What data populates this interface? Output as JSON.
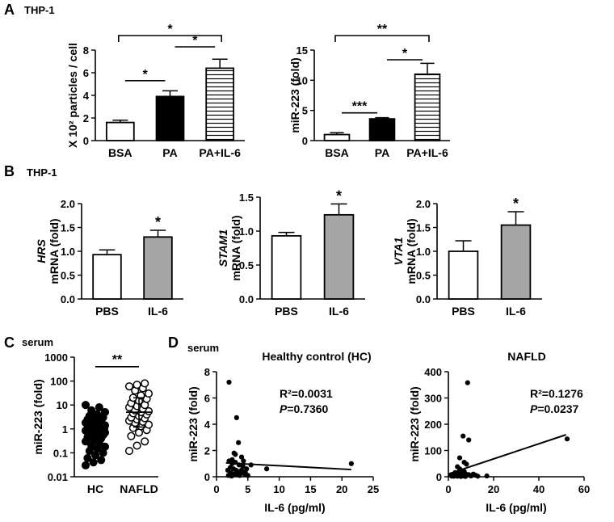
{
  "panels": {
    "A": {
      "letter": "A",
      "subtitle": "THP-1"
    },
    "B": {
      "letter": "B",
      "subtitle": "THP-1"
    },
    "C": {
      "letter": "C",
      "subtitle": "serum"
    },
    "D": {
      "letter": "D",
      "subtitle": "serum"
    }
  },
  "chart_data": [
    {
      "id": "A1",
      "type": "bar",
      "ylabel": "X 10² particles / cell",
      "ylim": [
        0,
        8
      ],
      "yticks": [
        0,
        2,
        4,
        6,
        8
      ],
      "categories": [
        "BSA",
        "PA",
        "PA+IL-6"
      ],
      "values": [
        1.6,
        3.9,
        6.4
      ],
      "errors": [
        0.2,
        0.5,
        0.8
      ],
      "fills": [
        "white",
        "black",
        "hstripe"
      ],
      "significance": [
        {
          "from": 0,
          "to": 1,
          "label": "*"
        },
        {
          "from": 1,
          "to": 2,
          "label": "*"
        },
        {
          "from": 0,
          "to": 2,
          "label": "*"
        }
      ]
    },
    {
      "id": "A2",
      "type": "bar",
      "ylabel": "miR-223 (fold)",
      "ylim": [
        0,
        15
      ],
      "yticks": [
        0,
        5,
        10,
        15
      ],
      "categories": [
        "BSA",
        "PA",
        "PA+IL-6"
      ],
      "values": [
        1.0,
        3.6,
        11.0
      ],
      "errors": [
        0.3,
        0.2,
        1.8
      ],
      "fills": [
        "white",
        "black",
        "hstripe"
      ],
      "significance": [
        {
          "from": 0,
          "to": 1,
          "label": "***"
        },
        {
          "from": 1,
          "to": 2,
          "label": "*"
        },
        {
          "from": 0,
          "to": 2,
          "label": "**"
        }
      ]
    },
    {
      "id": "B1",
      "type": "bar",
      "ylabel_gene": "HRS",
      "ylabel": "mRNA (fold)",
      "ylim": [
        0,
        2.0
      ],
      "yticks": [
        "0.0",
        "0.5",
        "1.0",
        "1.5",
        "2.0"
      ],
      "categories": [
        "PBS",
        "IL-6"
      ],
      "values": [
        0.93,
        1.3
      ],
      "errors": [
        0.1,
        0.14
      ],
      "fills": [
        "white",
        "gray"
      ],
      "stars": [
        "",
        "*"
      ]
    },
    {
      "id": "B2",
      "type": "bar",
      "ylabel_gene": "STAM1",
      "ylabel": "mRNA (fold)",
      "ylim": [
        0,
        1.5
      ],
      "yticks": [
        "0.0",
        "0.5",
        "1.0",
        "1.5"
      ],
      "categories": [
        "PBS",
        "IL-6"
      ],
      "values": [
        0.93,
        1.24
      ],
      "errors": [
        0.05,
        0.16
      ],
      "fills": [
        "white",
        "gray"
      ],
      "stars": [
        "",
        "*"
      ]
    },
    {
      "id": "B3",
      "type": "bar",
      "ylabel_gene": "VTA1",
      "ylabel": "mRNA (fold)",
      "ylim": [
        0,
        2.0
      ],
      "yticks": [
        "0.0",
        "0.5",
        "1.0",
        "1.5",
        "2.0"
      ],
      "categories": [
        "PBS",
        "IL-6"
      ],
      "values": [
        1.0,
        1.55
      ],
      "errors": [
        0.22,
        0.28
      ],
      "fills": [
        "white",
        "gray"
      ],
      "stars": [
        "",
        "*"
      ]
    },
    {
      "id": "C",
      "type": "scatter",
      "ylabel": "miR-223 (fold)",
      "yscale": "log",
      "ylim": [
        0.01,
        1000
      ],
      "yticks": [
        "0.01",
        "0.1",
        "1",
        "10",
        "100",
        "1000"
      ],
      "categories": [
        "HC",
        "NAFLD"
      ],
      "groups": [
        {
          "name": "HC",
          "marker": "filled",
          "mean": 1.0,
          "sd_low": 0.45,
          "sd_high": 2.2,
          "values": [
            0.03,
            0.04,
            0.05,
            0.06,
            0.08,
            0.1,
            0.12,
            0.15,
            0.18,
            0.2,
            0.25,
            0.3,
            0.35,
            0.4,
            0.45,
            0.5,
            0.55,
            0.6,
            0.65,
            0.7,
            0.75,
            0.8,
            0.85,
            0.9,
            0.95,
            1.0,
            1.0,
            1.1,
            1.2,
            1.3,
            1.4,
            1.5,
            1.6,
            1.8,
            2.0,
            2.2,
            2.5,
            2.8,
            3.0,
            3.5,
            4.0,
            5.0,
            6.0,
            8.0,
            10.0
          ]
        },
        {
          "name": "NAFLD",
          "marker": "open",
          "mean": 5.0,
          "sd_low": 1.2,
          "sd_high": 20.0,
          "values": [
            0.12,
            0.2,
            0.3,
            0.5,
            0.7,
            0.9,
            1.1,
            1.3,
            1.5,
            1.8,
            2.0,
            2.2,
            2.5,
            2.8,
            3.0,
            3.5,
            4.0,
            4.5,
            5.0,
            5.5,
            6.0,
            7.0,
            8.0,
            9.0,
            10.0,
            12.0,
            15.0,
            18.0,
            20.0,
            25.0,
            30.0,
            40.0,
            50.0,
            60.0,
            70.0,
            80.0
          ]
        }
      ],
      "significance": {
        "label": "**"
      }
    },
    {
      "id": "D1",
      "type": "scatter",
      "title": "Healthy control (HC)",
      "xlabel": "IL-6 (pg/ml)",
      "ylabel": "miR-223 (fold)",
      "xlim": [
        0,
        25
      ],
      "xticks": [
        0,
        5,
        10,
        15,
        20,
        25
      ],
      "ylim": [
        0,
        8
      ],
      "yticks": [
        0,
        2,
        4,
        6,
        8
      ],
      "annotation": {
        "r2_label": "R²=0.0031",
        "p_letter": "P",
        "p_value": "=0.7360"
      },
      "fit": {
        "x": [
          1.5,
          21.5
        ],
        "y": [
          1.05,
          0.55
        ]
      },
      "points": [
        [
          2.0,
          7.2
        ],
        [
          3.2,
          4.5
        ],
        [
          3.5,
          2.6
        ],
        [
          2.8,
          1.8
        ],
        [
          3.0,
          1.7
        ],
        [
          4.0,
          1.5
        ],
        [
          4.3,
          1.2
        ],
        [
          2.5,
          1.3
        ],
        [
          2.0,
          1.2
        ],
        [
          2.5,
          1.0
        ],
        [
          3.0,
          1.1
        ],
        [
          3.6,
          0.9
        ],
        [
          4.2,
          0.8
        ],
        [
          2.2,
          0.7
        ],
        [
          2.7,
          0.6
        ],
        [
          3.1,
          0.5
        ],
        [
          3.4,
          0.4
        ],
        [
          1.8,
          0.5
        ],
        [
          2.3,
          0.3
        ],
        [
          2.6,
          0.2
        ],
        [
          3.0,
          0.15
        ],
        [
          3.3,
          0.3
        ],
        [
          3.8,
          0.25
        ],
        [
          4.5,
          0.2
        ],
        [
          5.0,
          0.1
        ],
        [
          1.9,
          0.1
        ],
        [
          2.1,
          0.15
        ],
        [
          4.0,
          0.5
        ],
        [
          4.8,
          0.6
        ],
        [
          8.0,
          0.6
        ],
        [
          5.5,
          0.9
        ],
        [
          21.5,
          1.0
        ],
        [
          2.4,
          0.05
        ],
        [
          3.7,
          0.1
        ],
        [
          4.6,
          0.35
        ]
      ]
    },
    {
      "id": "D2",
      "type": "scatter",
      "title": "NAFLD",
      "xlabel": "IL-6 (pg/ml)",
      "ylabel": "miR-223 (fold)",
      "xlim": [
        0,
        60
      ],
      "xticks": [
        0,
        20,
        40,
        60
      ],
      "ylim": [
        0,
        400
      ],
      "yticks": [
        0,
        100,
        200,
        300,
        400
      ],
      "annotation": {
        "r2_label": "R²=0.1276",
        "p_letter": "P",
        "p_value": "=0.0237"
      },
      "fit": {
        "x": [
          0.5,
          52
        ],
        "y": [
          12,
          160
        ]
      },
      "points": [
        [
          8.5,
          358
        ],
        [
          6.5,
          155
        ],
        [
          9.0,
          140
        ],
        [
          52.5,
          144
        ],
        [
          5.0,
          72
        ],
        [
          7.0,
          55
        ],
        [
          8.0,
          48
        ],
        [
          4.0,
          38
        ],
        [
          5.0,
          30
        ],
        [
          6.0,
          22
        ],
        [
          7.0,
          20
        ],
        [
          3.0,
          16
        ],
        [
          4.5,
          12
        ],
        [
          5.5,
          10
        ],
        [
          8.0,
          9
        ],
        [
          9.0,
          8
        ],
        [
          11.0,
          10
        ],
        [
          12.0,
          6
        ],
        [
          2.0,
          5
        ],
        [
          3.5,
          4
        ],
        [
          6.5,
          3
        ],
        [
          10.0,
          3
        ],
        [
          1.5,
          2
        ],
        [
          2.5,
          2
        ],
        [
          4.0,
          2
        ],
        [
          5.5,
          1
        ],
        [
          7.5,
          1
        ],
        [
          13.0,
          2
        ],
        [
          17.0,
          3
        ],
        [
          1.0,
          6
        ]
      ]
    }
  ]
}
